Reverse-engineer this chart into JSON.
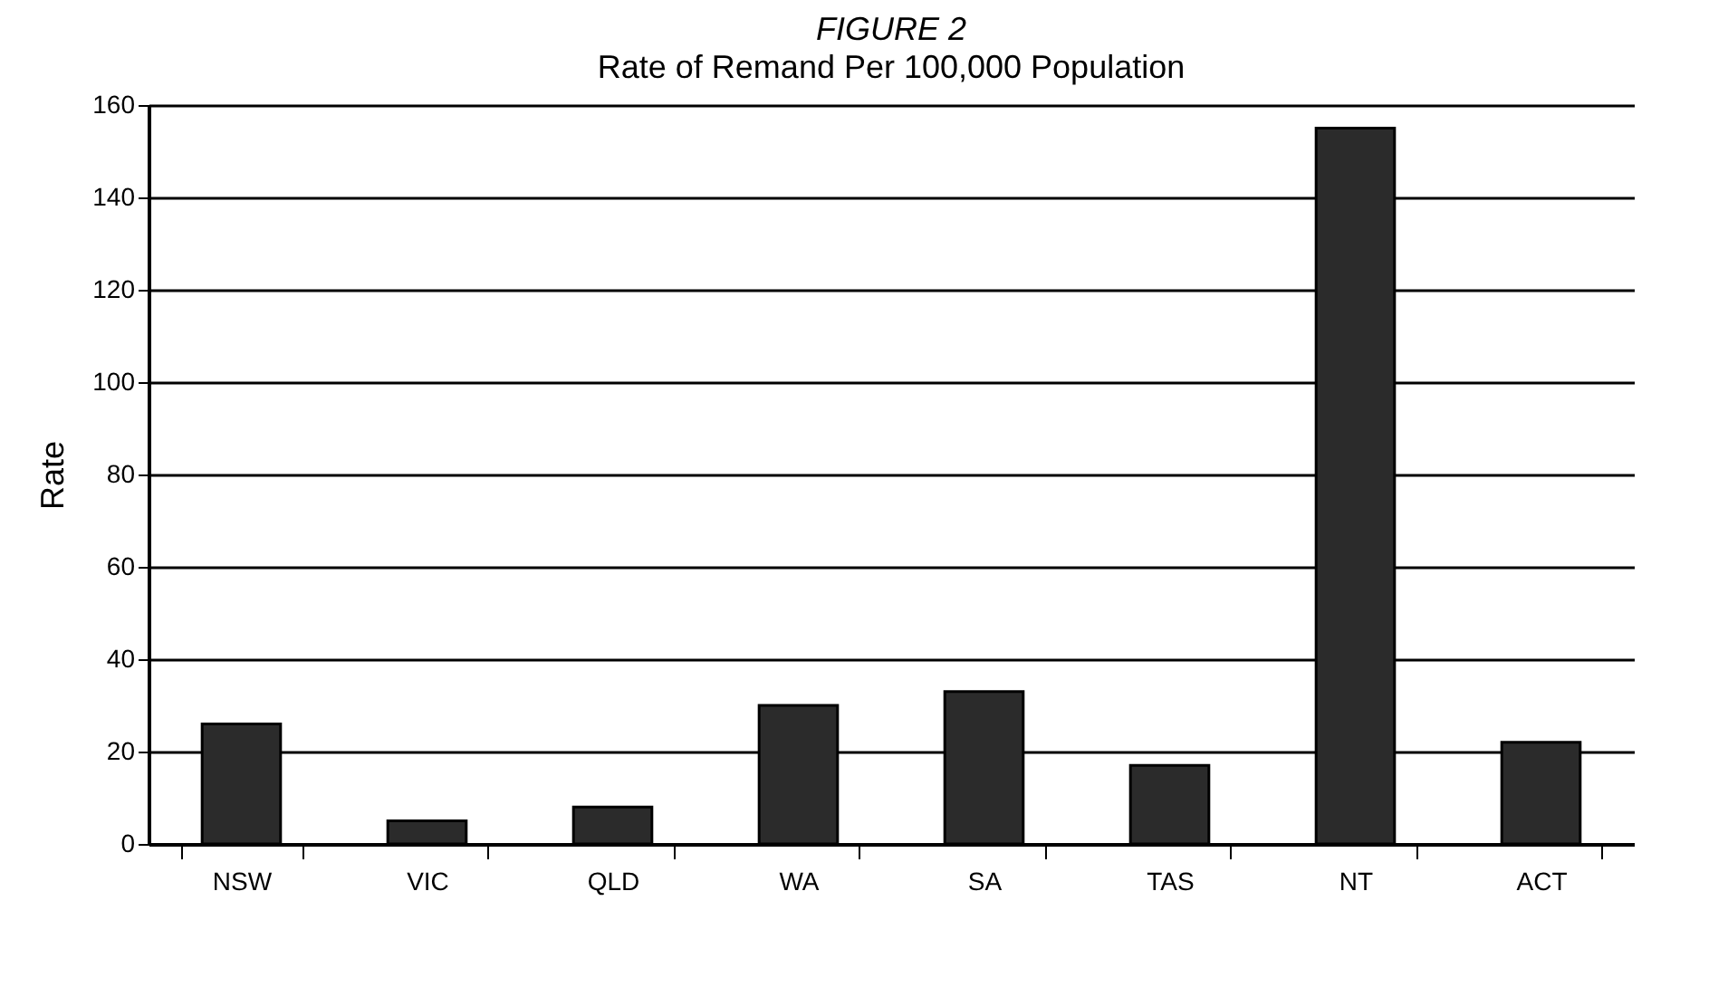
{
  "chart_data": {
    "type": "bar",
    "title": "FIGURE 2",
    "subtitle": "Rate of Remand Per 100,000 Population",
    "ylabel": "Rate",
    "categories": [
      "NSW",
      "VIC",
      "QLD",
      "WA",
      "SA",
      "TAS",
      "NT",
      "ACT"
    ],
    "values": [
      26,
      5,
      8,
      30,
      33,
      17,
      155,
      22
    ],
    "color": "#2b2b2b",
    "ylim": [
      0,
      160
    ],
    "yticks": [
      0,
      20,
      40,
      60,
      80,
      100,
      120,
      140,
      160
    ],
    "grid": "y"
  }
}
